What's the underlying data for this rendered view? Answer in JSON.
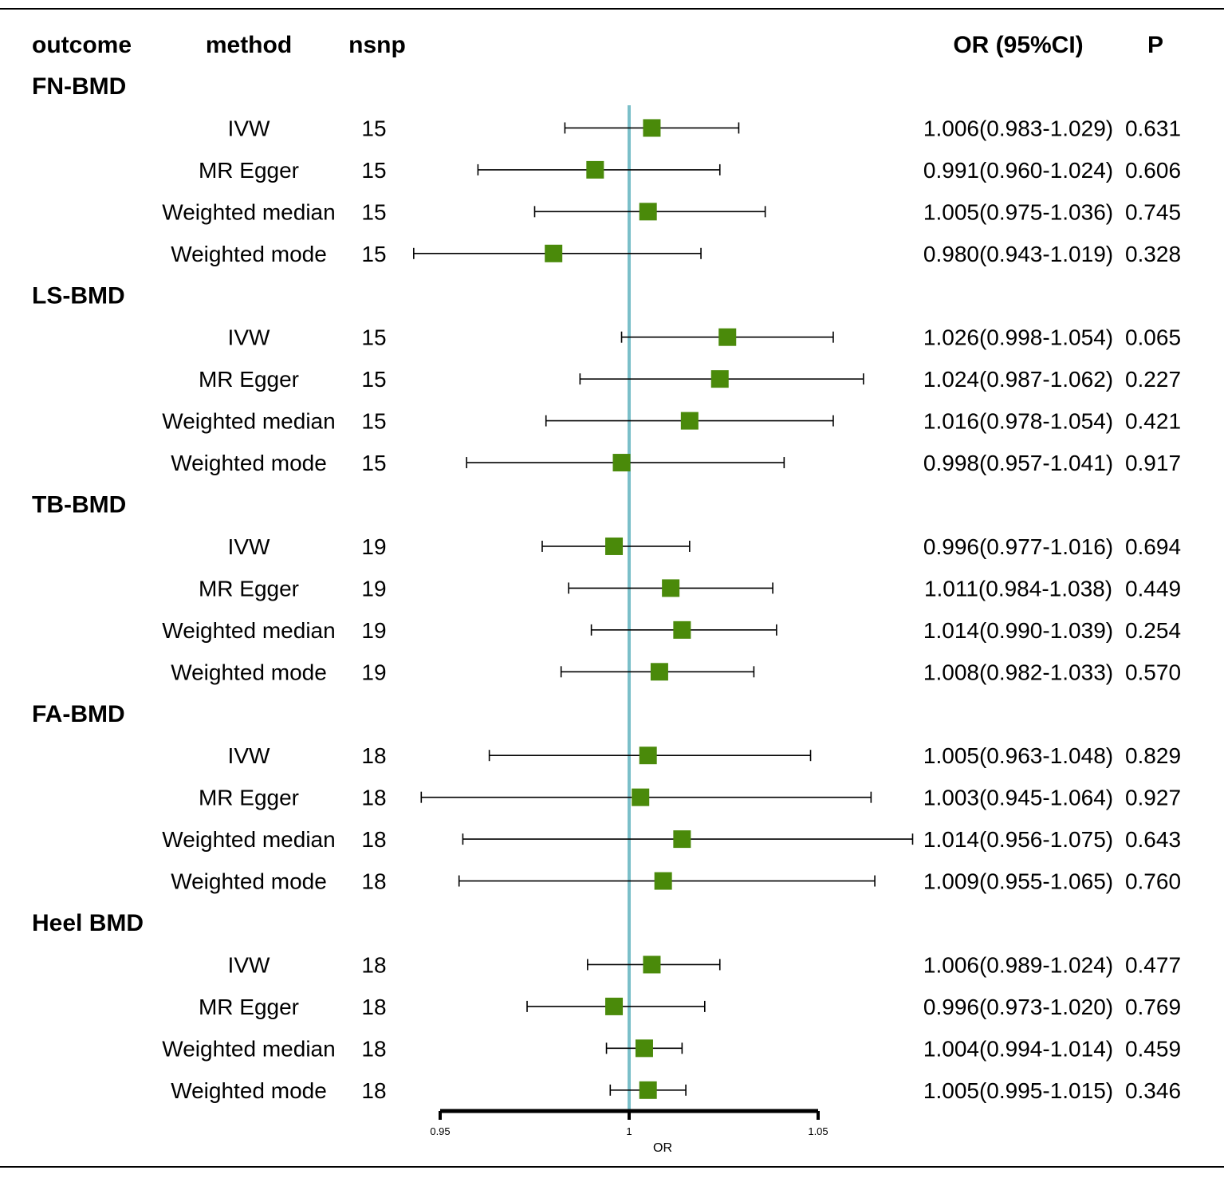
{
  "columns": {
    "outcome": "outcome",
    "method": "method",
    "nsnp": "nsnp",
    "or_ci": "OR (95%CI)",
    "p": "P"
  },
  "chart_data": {
    "type": "forest",
    "xlabel": "OR",
    "xlim": [
      0.95,
      1.05
    ],
    "ticks": [
      0.95,
      1,
      1.05
    ],
    "tick_labels": [
      "0.95",
      "1",
      "1.05"
    ],
    "reference_line": 1,
    "colors": {
      "marker": "#4a8a0a",
      "reference": "#7bbfc9",
      "whisker": "#000000"
    },
    "groups": [
      {
        "name": "FN-BMD",
        "rows": [
          {
            "method": "IVW",
            "nsnp": "15",
            "or": 1.006,
            "lo": 0.983,
            "hi": 1.029,
            "ci_text": "1.006(0.983-1.029)",
            "p": "0.631"
          },
          {
            "method": "MR Egger",
            "nsnp": "15",
            "or": 0.991,
            "lo": 0.96,
            "hi": 1.024,
            "ci_text": "0.991(0.960-1.024)",
            "p": "0.606"
          },
          {
            "method": "Weighted median",
            "nsnp": "15",
            "or": 1.005,
            "lo": 0.975,
            "hi": 1.036,
            "ci_text": "1.005(0.975-1.036)",
            "p": "0.745"
          },
          {
            "method": "Weighted mode",
            "nsnp": "15",
            "or": 0.98,
            "lo": 0.943,
            "hi": 1.019,
            "ci_text": "0.980(0.943-1.019)",
            "p": "0.328"
          }
        ]
      },
      {
        "name": "LS-BMD",
        "rows": [
          {
            "method": "IVW",
            "nsnp": "15",
            "or": 1.026,
            "lo": 0.998,
            "hi": 1.054,
            "ci_text": "1.026(0.998-1.054)",
            "p": "0.065"
          },
          {
            "method": "MR Egger",
            "nsnp": "15",
            "or": 1.024,
            "lo": 0.987,
            "hi": 1.062,
            "ci_text": "1.024(0.987-1.062)",
            "p": "0.227"
          },
          {
            "method": "Weighted median",
            "nsnp": "15",
            "or": 1.016,
            "lo": 0.978,
            "hi": 1.054,
            "ci_text": "1.016(0.978-1.054)",
            "p": "0.421"
          },
          {
            "method": "Weighted mode",
            "nsnp": "15",
            "or": 0.998,
            "lo": 0.957,
            "hi": 1.041,
            "ci_text": "0.998(0.957-1.041)",
            "p": "0.917"
          }
        ]
      },
      {
        "name": "TB-BMD",
        "rows": [
          {
            "method": "IVW",
            "nsnp": "19",
            "or": 0.996,
            "lo": 0.977,
            "hi": 1.016,
            "ci_text": "0.996(0.977-1.016)",
            "p": "0.694"
          },
          {
            "method": "MR Egger",
            "nsnp": "19",
            "or": 1.011,
            "lo": 0.984,
            "hi": 1.038,
            "ci_text": "1.011(0.984-1.038)",
            "p": "0.449"
          },
          {
            "method": "Weighted median",
            "nsnp": "19",
            "or": 1.014,
            "lo": 0.99,
            "hi": 1.039,
            "ci_text": "1.014(0.990-1.039)",
            "p": "0.254"
          },
          {
            "method": "Weighted mode",
            "nsnp": "19",
            "or": 1.008,
            "lo": 0.982,
            "hi": 1.033,
            "ci_text": "1.008(0.982-1.033)",
            "p": "0.570"
          }
        ]
      },
      {
        "name": "FA-BMD",
        "rows": [
          {
            "method": "IVW",
            "nsnp": "18",
            "or": 1.005,
            "lo": 0.963,
            "hi": 1.048,
            "ci_text": "1.005(0.963-1.048)",
            "p": "0.829"
          },
          {
            "method": "MR Egger",
            "nsnp": "18",
            "or": 1.003,
            "lo": 0.945,
            "hi": 1.064,
            "ci_text": "1.003(0.945-1.064)",
            "p": "0.927"
          },
          {
            "method": "Weighted median",
            "nsnp": "18",
            "or": 1.014,
            "lo": 0.956,
            "hi": 1.075,
            "ci_text": "1.014(0.956-1.075)",
            "p": "0.643"
          },
          {
            "method": "Weighted mode",
            "nsnp": "18",
            "or": 1.009,
            "lo": 0.955,
            "hi": 1.065,
            "ci_text": "1.009(0.955-1.065)",
            "p": "0.760"
          }
        ]
      },
      {
        "name": "Heel BMD",
        "rows": [
          {
            "method": "IVW",
            "nsnp": "18",
            "or": 1.006,
            "lo": 0.989,
            "hi": 1.024,
            "ci_text": "1.006(0.989-1.024)",
            "p": "0.477"
          },
          {
            "method": "MR Egger",
            "nsnp": "18",
            "or": 0.996,
            "lo": 0.973,
            "hi": 1.02,
            "ci_text": "0.996(0.973-1.020)",
            "p": "0.769"
          },
          {
            "method": "Weighted median",
            "nsnp": "18",
            "or": 1.004,
            "lo": 0.994,
            "hi": 1.014,
            "ci_text": "1.004(0.994-1.014)",
            "p": "0.459"
          },
          {
            "method": "Weighted mode",
            "nsnp": "18",
            "or": 1.005,
            "lo": 0.995,
            "hi": 1.015,
            "ci_text": "1.005(0.995-1.015)",
            "p": "0.346"
          }
        ]
      }
    ]
  }
}
